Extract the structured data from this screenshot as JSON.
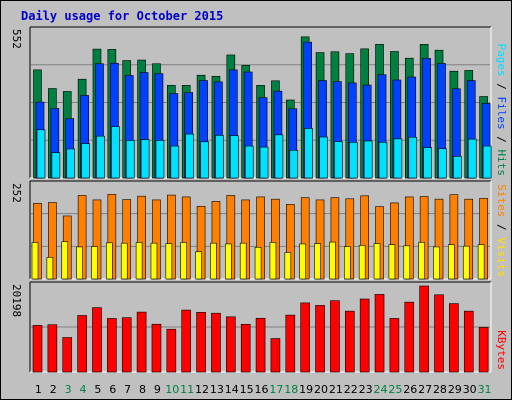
{
  "title": "Daily usage for October 2015",
  "colors": {
    "hits": "#008040",
    "files": "#0040ff",
    "pages": "#00e0ff",
    "visits": "#ff8000",
    "sites": "#ffff00",
    "kbytes": "#ff0000",
    "weekend": "#008040",
    "weekday": "#000000",
    "background": "#c0c0c0",
    "sites_label": "#ff8000",
    "visits_label": "#ffe000"
  },
  "chart_data": {
    "type": "bar",
    "title": "Daily usage for October 2015",
    "categories": [
      "1",
      "2",
      "3",
      "4",
      "5",
      "6",
      "7",
      "8",
      "9",
      "10",
      "11",
      "12",
      "13",
      "14",
      "15",
      "16",
      "17",
      "18",
      "19",
      "20",
      "21",
      "22",
      "23",
      "24",
      "25",
      "26",
      "27",
      "28",
      "29",
      "30",
      "31"
    ],
    "weekend_days": [
      "3",
      "4",
      "10",
      "11",
      "17",
      "18",
      "24",
      "25",
      "31"
    ],
    "panels": [
      {
        "axis_label": "552",
        "legend": [
          "Pages",
          "Files",
          "Hits"
        ],
        "ylim": [
          0,
          552
        ],
        "series": [
          {
            "name": "Hits",
            "values": [
              406,
              336,
              325,
              371,
              484,
              483,
              441,
              443,
              429,
              348,
              348,
              386,
              382,
              462,
              423,
              348,
              365,
              293,
              530,
              471,
              474,
              467,
              485,
              502,
              475,
              450,
              502,
              480,
              401,
              404,
              306
            ]
          },
          {
            "name": "Files",
            "values": [
              285,
              261,
              223,
              310,
              429,
              431,
              385,
              396,
              392,
              317,
              321,
              366,
              361,
              406,
              398,
              302,
              326,
              260,
              510,
              366,
              362,
              357,
              349,
              388,
              368,
              379,
              449,
              430,
              335,
              366,
              280
            ]
          },
          {
            "name": "Pages",
            "values": [
              181,
              95,
              109,
              129,
              157,
              193,
              141,
              144,
              141,
              120,
              165,
              136,
              160,
              159,
              120,
              116,
              162,
              104,
              186,
              154,
              137,
              134,
              139,
              134,
              147,
              153,
              114,
              110,
              81,
              146,
              120
            ]
          }
        ]
      },
      {
        "axis_label": "252",
        "legend": [
          "Sites",
          "Visits"
        ],
        "ylim": [
          0,
          252
        ],
        "series": [
          {
            "name": "Visits",
            "values": [
              203,
              205,
              169,
              224,
              212,
              227,
              213,
              222,
              212,
              225,
              220,
              195,
              208,
              224,
              212,
              220,
              214,
              200,
              218,
              212,
              218,
              215,
              223,
              194,
              204,
              220,
              221,
              214,
              226,
              214,
              216
            ]
          },
          {
            "name": "Sites",
            "values": [
              98,
              58,
              100,
              86,
              87,
              97,
              96,
              98,
              96,
              95,
              98,
              73,
              96,
              94,
              96,
              85,
              98,
              71,
              94,
              95,
              99,
              87,
              90,
              95,
              92,
              89,
              98,
              86,
              92,
              88,
              92
            ]
          }
        ]
      },
      {
        "axis_label": "20198",
        "legend": [
          "KBytes"
        ],
        "ylim": [
          0,
          20198
        ],
        "series": [
          {
            "name": "KBytes",
            "values": [
              10950,
              11100,
              8100,
              13270,
              15120,
              12570,
              12760,
              14070,
              11220,
              10050,
              14540,
              14010,
              13810,
              12960,
              11210,
              12620,
              7860,
              13360,
              16230,
              15640,
              16740,
              14290,
              17140,
              18220,
              12580,
              16410,
              20198,
              18130,
              16070,
              14290,
              10460
            ]
          }
        ]
      }
    ]
  }
}
